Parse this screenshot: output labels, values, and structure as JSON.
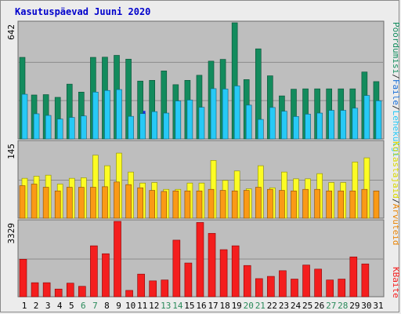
{
  "chart_data": {
    "type": "bar",
    "title": "Kasutuspäevad Juuni 2020",
    "categories": [
      "1",
      "2",
      "3",
      "4",
      "5",
      "6",
      "7",
      "8",
      "9",
      "10",
      "11",
      "12",
      "13",
      "14",
      "15",
      "16",
      "17",
      "18",
      "19",
      "20",
      "21",
      "22",
      "23",
      "24",
      "25",
      "26",
      "27",
      "28",
      "29",
      "30",
      "31"
    ],
    "weekend_days": [
      "6",
      "7",
      "13",
      "14",
      "20",
      "21",
      "27",
      "28"
    ],
    "panels": [
      {
        "ymax_label": "642",
        "ymax": 642,
        "right_label_parts": [
          "Pöördumisi",
          "/",
          "Faile",
          "/",
          "Lehekülgi"
        ],
        "series": [
          {
            "name": "Pöördumisi",
            "color": "#138b5d",
            "values": [
              451,
              243,
              245,
              230,
              303,
              259,
              451,
              452,
              462,
              441,
              320,
              324,
              376,
              300,
              324,
              352,
              430,
              440,
              642,
              328,
              498,
              349,
              238,
              275,
              277,
              277,
              277,
              277,
              277,
              370,
              317
            ]
          },
          {
            "name": "Faile",
            "color": "#27c9f6",
            "values": [
              247,
              139,
              130,
              110,
              119,
              127,
              259,
              268,
              273,
              125,
              140,
              151,
              143,
              210,
              215,
              175,
              278,
              276,
              293,
              187,
              108,
              174,
              153,
              124,
              137,
              143,
              158,
              158,
              170,
              240,
              211
            ]
          },
          {
            "name": "Lehekülgi",
            "color": "#1a2fe0",
            "values": [
              0,
              0,
              0,
              0,
              0,
              0,
              0,
              0,
              0,
              0,
              155,
              0,
              0,
              0,
              0,
              0,
              0,
              0,
              0,
              0,
              0,
              0,
              0,
              0,
              0,
              0,
              0,
              0,
              0,
              0,
              0
            ]
          }
        ]
      },
      {
        "ymax_label": "145",
        "ymax": 145,
        "series": [
          {
            "name": "Külastajaid",
            "color": "#fcfc24",
            "values": [
              76,
              80,
              82,
              65,
              76,
              77,
              120,
              100,
              124,
              88,
              67,
              68,
              55,
              55,
              67,
              67,
              110,
              72,
              90,
              56,
              100,
              58,
              88,
              75,
              75,
              85,
              68,
              68,
              107,
              115,
              0
            ]
          },
          {
            "name": "Arvuteid",
            "color": "#fa9a16",
            "values": [
              62,
              65,
              59,
              52,
              59,
              59,
              59,
              60,
              69,
              64,
              58,
              53,
              51,
              52,
              52,
              52,
              55,
              53,
              52,
              53,
              59,
              55,
              53,
              52,
              55,
              55,
              52,
              52,
              52,
              55,
              52
            ]
          }
        ]
      },
      {
        "ymax_label": "3329",
        "ymax": 3329,
        "right_label_parts": [
          "KBaite"
        ],
        "series": [
          {
            "name": "KBaite",
            "color": "#f41e1e",
            "values": [
              1655,
              620,
              620,
              340,
              600,
              460,
              2250,
              1900,
              3329,
              280,
              1000,
              700,
              740,
              2500,
              1490,
              3280,
              2800,
              2080,
              2250,
              1380,
              800,
              900,
              1150,
              780,
              1400,
              1220,
              740,
              780,
              1760,
              1450,
              0
            ]
          }
        ]
      }
    ]
  }
}
